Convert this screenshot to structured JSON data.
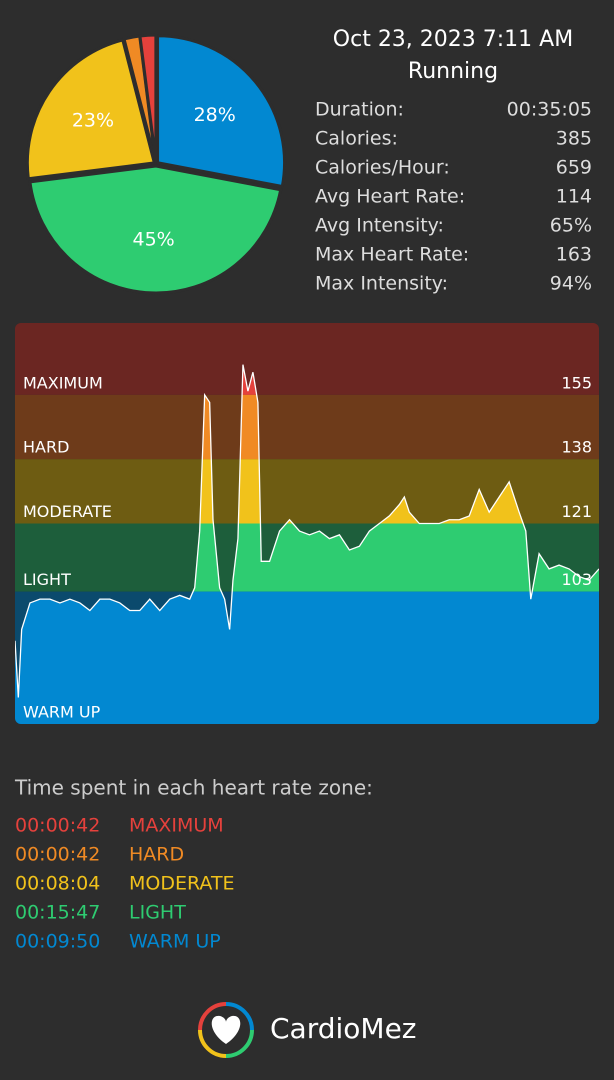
{
  "header": {
    "date": "Oct 23, 2023 7:11 AM",
    "activity": "Running"
  },
  "stats": [
    [
      "Duration:",
      "00:35:05"
    ],
    [
      "Calories:",
      "385"
    ],
    [
      "Calories/Hour:",
      "659"
    ],
    [
      "Avg Heart Rate:",
      "114"
    ],
    [
      "Avg Intensity:",
      "65%"
    ],
    [
      "Max Heart Rate:",
      "163"
    ],
    [
      "Max Intensity:",
      "94%"
    ]
  ],
  "chart_data": [
    {
      "type": "pie",
      "values": [
        28,
        45,
        23,
        2,
        2
      ],
      "value_labels": [
        "28%",
        "45%",
        "23%",
        null,
        null
      ],
      "colors": [
        "#0288d1",
        "#2ecc71",
        "#f1c21b",
        "#f08a24",
        "#e5413c"
      ]
    },
    {
      "type": "area",
      "x": [
        0,
        0.2,
        0.4,
        0.9,
        1.5,
        2.1,
        2.7,
        3.3,
        3.9,
        4.5,
        5.1,
        5.7,
        6.3,
        6.9,
        7.5,
        8.1,
        8.7,
        9.3,
        9.9,
        10.5,
        10.8,
        11.1,
        11.4,
        11.7,
        11.9,
        12.3,
        12.6,
        12.9,
        13.1,
        13.4,
        13.7,
        14,
        14.3,
        14.6,
        14.8,
        15.3,
        15.9,
        16.5,
        17.1,
        17.7,
        18.3,
        18.9,
        19.5,
        20.1,
        20.7,
        21.3,
        21.9,
        22.5,
        23.1,
        23.4,
        23.7,
        24.3,
        24.9,
        25.5,
        26.1,
        26.7,
        27.3,
        27.9,
        28.5,
        29.1,
        29.7,
        30.3,
        30.7,
        31,
        31.5,
        32.1,
        32.7,
        33.3,
        33.9,
        34.5,
        35.1
      ],
      "values": [
        90,
        75,
        93,
        100,
        101,
        101,
        100,
        101,
        100,
        98,
        101,
        101,
        100,
        98,
        98,
        101,
        98,
        101,
        102,
        101,
        104,
        119,
        155,
        153,
        122,
        104,
        101,
        93,
        106,
        117,
        163,
        156,
        161,
        153,
        111,
        111,
        119,
        122,
        119,
        118,
        119,
        117,
        118,
        114,
        115,
        119,
        121,
        123,
        126,
        128,
        124,
        121,
        121,
        121,
        122,
        122,
        123,
        130,
        124,
        128,
        132,
        124,
        119,
        101,
        113,
        109,
        110,
        109,
        107,
        106,
        109
      ],
      "xlim": [
        0,
        35.1
      ],
      "ylim": [
        68,
        174
      ],
      "yticks": [
        103,
        121,
        138,
        155
      ],
      "line_color": "#ffffff",
      "zones": [
        {
          "name": "MAXIMUM",
          "color": "#e5413c",
          "bg": "#6b2622"
        },
        {
          "name": "HARD",
          "color": "#f08a24",
          "bg": "#6e3b1a"
        },
        {
          "name": "MODERATE",
          "color": "#f1c21b",
          "bg": "#6e5c12"
        },
        {
          "name": "LIGHT",
          "color": "#2ecc71",
          "bg": "#1d5e3b"
        },
        {
          "name": "WARM UP",
          "color": "#0288d1",
          "bg": "#0b4a6d"
        }
      ]
    }
  ],
  "zone_times": {
    "title": "Time spent in each heart rate zone:",
    "rows": [
      {
        "time": "00:00:42",
        "zone": "MAXIMUM",
        "color": "#e5413c"
      },
      {
        "time": "00:00:42",
        "zone": "HARD",
        "color": "#f08a24"
      },
      {
        "time": "00:08:04",
        "zone": "MODERATE",
        "color": "#f1c21b"
      },
      {
        "time": "00:15:47",
        "zone": "LIGHT",
        "color": "#2ecc71"
      },
      {
        "time": "00:09:50",
        "zone": "WARM UP",
        "color": "#0288d1"
      }
    ]
  },
  "footer": {
    "brand": "CardioMez"
  }
}
